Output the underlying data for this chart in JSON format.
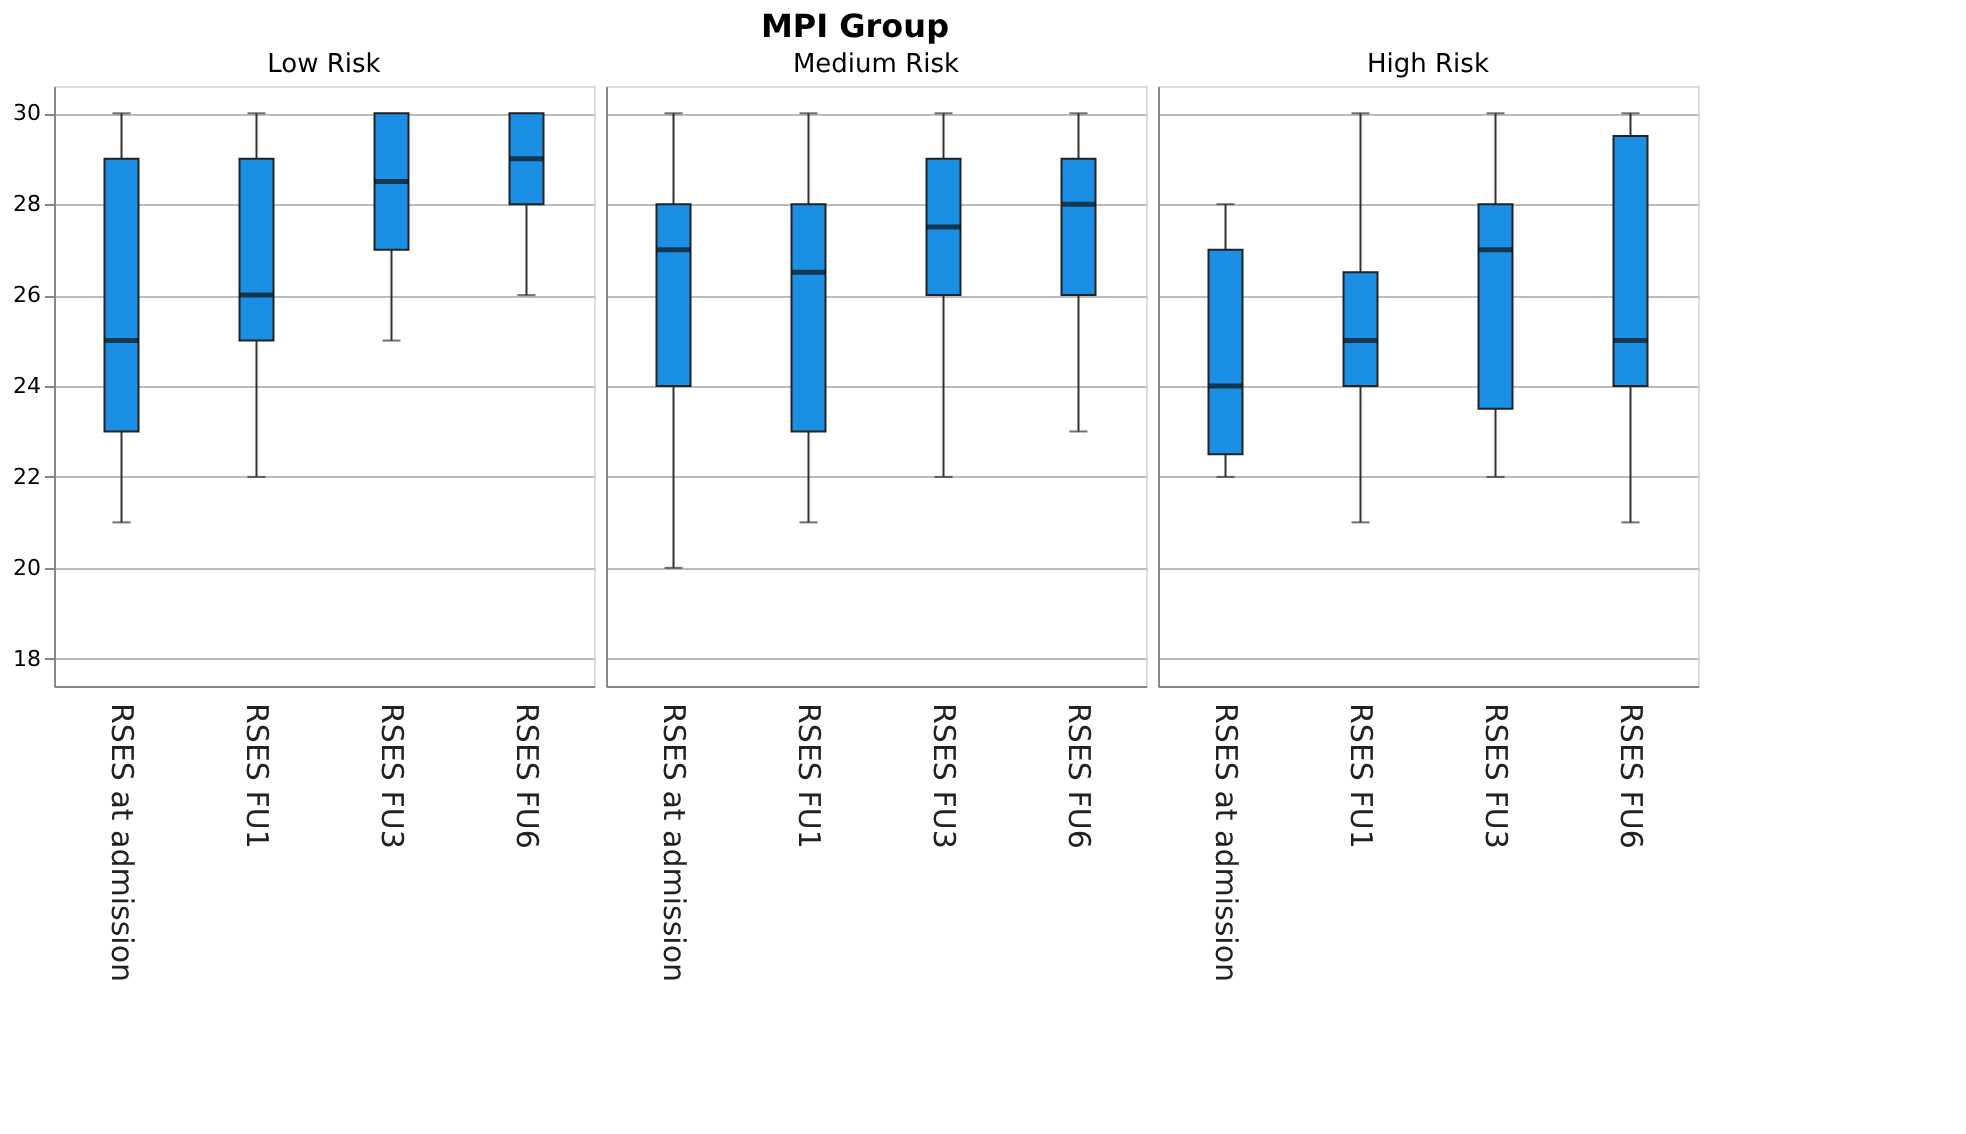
{
  "chart_data": [
    {
      "type": "box",
      "title": "Low Risk",
      "annotations": [
        "MPI Group"
      ],
      "categories": [
        "RSES at admission",
        "RSES FU1",
        "RSES FU3",
        "RSES FU6"
      ],
      "ylim": [
        17.4,
        30.6
      ],
      "yticks": [
        18,
        20,
        22,
        24,
        26,
        28,
        30
      ],
      "grid": "y",
      "series": [
        {
          "color": "#1a8fe3",
          "boxes": [
            {
              "low": 21,
              "q1": 23,
              "median": 25,
              "q3": 29,
              "high": 30
            },
            {
              "low": 22,
              "q1": 25,
              "median": 26,
              "q3": 29,
              "high": 30
            },
            {
              "low": 25,
              "q1": 27,
              "median": 28.5,
              "q3": 30,
              "high": 30
            },
            {
              "low": 26,
              "q1": 28,
              "median": 29,
              "q3": 30,
              "high": 30
            }
          ]
        }
      ]
    },
    {
      "type": "box",
      "title": "Medium Risk",
      "categories": [
        "RSES at admission",
        "RSES FU1",
        "RSES FU3",
        "RSES FU6"
      ],
      "ylim": [
        17.4,
        30.6
      ],
      "yticks": [
        18,
        20,
        22,
        24,
        26,
        28,
        30
      ],
      "grid": "y",
      "tick_labels": "x",
      "series": [
        {
          "color": "#1a8fe3",
          "boxes": [
            {
              "low": 20,
              "q1": 24,
              "median": 27,
              "q3": 28,
              "high": 30
            },
            {
              "low": 21,
              "q1": 23,
              "median": 26.5,
              "q3": 28,
              "high": 30
            },
            {
              "low": 22,
              "q1": 26,
              "median": 27.5,
              "q3": 29,
              "high": 30
            },
            {
              "low": 23,
              "q1": 26,
              "median": 28,
              "q3": 29,
              "high": 30
            }
          ]
        }
      ]
    },
    {
      "type": "box",
      "title": "High Risk",
      "categories": [
        "RSES at admission",
        "RSES FU1",
        "RSES FU3",
        "RSES FU6"
      ],
      "ylim": [
        17.4,
        30.6
      ],
      "yticks": [
        18,
        20,
        22,
        24,
        26,
        28,
        30
      ],
      "grid": "y",
      "tick_labels": "x",
      "series": [
        {
          "color": "#1a8fe3",
          "boxes": [
            {
              "low": 22,
              "q1": 22.5,
              "median": 24,
              "q3": 27,
              "high": 28
            },
            {
              "low": 21,
              "q1": 24,
              "median": 25,
              "q3": 26.5,
              "high": 30
            },
            {
              "low": 22,
              "q1": 23.5,
              "median": 27,
              "q3": 28,
              "high": 30
            },
            {
              "low": 21,
              "q1": 24,
              "median": 25,
              "q3": 29.5,
              "high": 30
            }
          ]
        }
      ]
    }
  ]
}
